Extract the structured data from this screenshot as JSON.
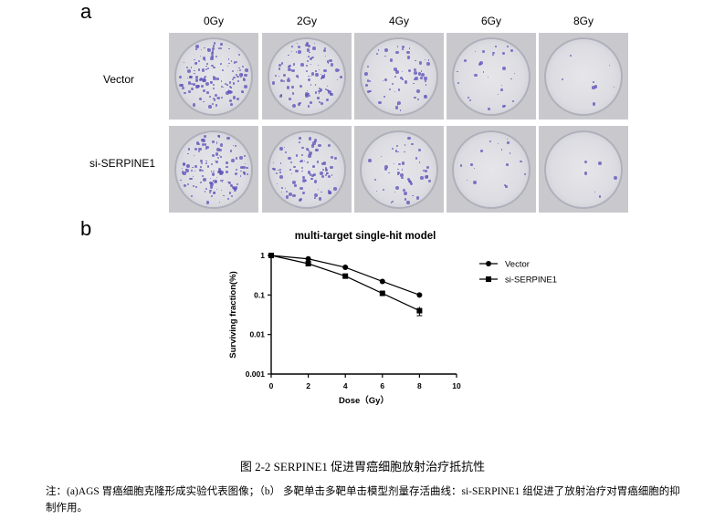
{
  "panel_a": {
    "letter": "a",
    "doses": [
      "0Gy",
      "2Gy",
      "4Gy",
      "6Gy",
      "8Gy"
    ],
    "rows": [
      "Vector",
      "si-SERPINE1"
    ],
    "colony_density": [
      [
        1.0,
        0.75,
        0.45,
        0.2,
        0.06
      ],
      [
        0.95,
        0.65,
        0.35,
        0.12,
        0.04
      ]
    ]
  },
  "panel_b": {
    "letter": "b"
  },
  "chart_data": {
    "type": "line",
    "title": "multi-target single-hit model",
    "xlabel": "Dose（Gy）",
    "ylabel": "Surviving fraction(%)",
    "xlim": [
      0,
      10
    ],
    "ylim": [
      0.001,
      1
    ],
    "yscale": "log",
    "x_ticks": [
      "0",
      "2",
      "4",
      "6",
      "8",
      "10"
    ],
    "y_ticks": [
      "0.001",
      "0.01",
      "0.1",
      "1"
    ],
    "x": [
      0,
      2,
      4,
      6,
      8
    ],
    "legend_position": "right",
    "series": [
      {
        "name": "Vector",
        "marker": "circle",
        "values": [
          1.0,
          0.82,
          0.5,
          0.22,
          0.1
        ]
      },
      {
        "name": "si-SERPINE1",
        "marker": "square",
        "values": [
          1.0,
          0.62,
          0.3,
          0.11,
          0.04
        ],
        "error_at_8": 0.01
      }
    ]
  },
  "caption": "图 2-2 SERPINE1 促进胃癌细胞放射治疗抵抗性",
  "note": "注：(a)AGS 胃癌细胞克隆形成实验代表图像；（b） 多靶单击多靶单击模型剂量存活曲线：si-SERPINE1 组促进了放射治疗对胃癌细胞的抑制作用。"
}
